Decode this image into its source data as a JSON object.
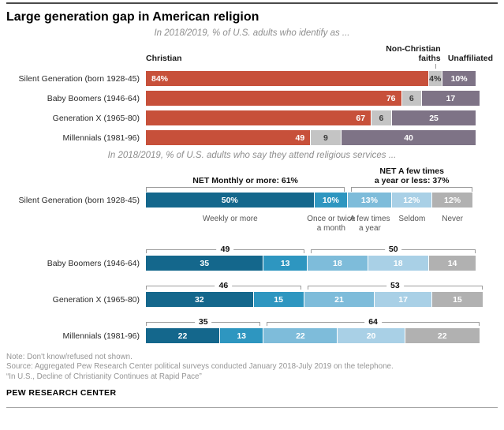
{
  "page": {
    "title": "Large generation gap in American religion"
  },
  "chart_data": [
    {
      "type": "bar",
      "stacked": true,
      "orientation": "horizontal",
      "title": "In 2018/2019, % of U.S. adults who identify as ...",
      "unit": "%",
      "xlim": [
        0,
        100
      ],
      "grid": false,
      "legend_position": "top",
      "column_headers": {
        "christian": "Christian",
        "non_christian": "Non-Christian\nfaiths",
        "unaffiliated": "Unaffiliated"
      },
      "categories": [
        "Silent Generation (born 1928-45)",
        "Baby Boomers (1946-64)",
        "Generation X (1965-80)",
        "Millennials (1981-96)"
      ],
      "series": [
        {
          "name": "Christian",
          "color": "#c7503a",
          "values": [
            84,
            76,
            67,
            49
          ],
          "value_labels": [
            "84%",
            "76",
            "67",
            "49"
          ]
        },
        {
          "name": "Non-Christian faiths",
          "color": "#c4c4c4",
          "values": [
            4,
            6,
            6,
            9
          ],
          "value_labels": [
            "4%",
            "6",
            "6",
            "9"
          ]
        },
        {
          "name": "Unaffiliated",
          "color": "#7e7386",
          "values": [
            10,
            17,
            25,
            40
          ],
          "value_labels": [
            "10%",
            "17",
            "25",
            "40"
          ]
        }
      ]
    },
    {
      "type": "bar",
      "stacked": true,
      "orientation": "horizontal",
      "title": "In 2018/2019, % of U.S. adults who say they attend religious services ...",
      "unit": "%",
      "xlim": [
        0,
        100
      ],
      "grid": false,
      "categories": [
        "Silent Generation (born 1928-45)",
        "Baby Boomers (1946-64)",
        "Generation X (1965-80)",
        "Millennials (1981-96)"
      ],
      "series": [
        {
          "name": "Weekly or more",
          "color": "#14678c",
          "values": [
            50,
            35,
            32,
            22
          ],
          "value_labels": [
            "50%",
            "35",
            "32",
            "22"
          ]
        },
        {
          "name": "Once or twice a month",
          "color": "#2e96c0",
          "values": [
            10,
            13,
            15,
            13
          ],
          "value_labels": [
            "10%",
            "13",
            "15",
            "13"
          ]
        },
        {
          "name": "A few times a year",
          "color": "#7ebcda",
          "values": [
            13,
            18,
            21,
            22
          ],
          "value_labels": [
            "13%",
            "18",
            "21",
            "22"
          ]
        },
        {
          "name": "Seldom",
          "color": "#a9d0e6",
          "values": [
            12,
            18,
            17,
            20
          ],
          "value_labels": [
            "12%",
            "18",
            "17",
            "20"
          ]
        },
        {
          "name": "Never",
          "color": "#b1b1b1",
          "values": [
            12,
            14,
            15,
            22
          ],
          "value_labels": [
            "12%",
            "14",
            "15",
            "22"
          ]
        }
      ],
      "segment_axis_labels": [
        "Weekly or more",
        "Once or twice\na month",
        "A few times\na year",
        "Seldom",
        "Never"
      ],
      "net_headers": {
        "left": "NET Monthly or more: 61%",
        "right": "NET A few times\na year or less: 37%"
      },
      "net_values": [
        {
          "left": "49",
          "right": "50"
        },
        {
          "left": "46",
          "right": "53"
        },
        {
          "left": "35",
          "right": "64"
        }
      ]
    }
  ],
  "footer": {
    "note": "Note: Don't know/refused not shown.",
    "source": "Source: Aggregated Pew Research Center political surveys conducted January 2018-July 2019 on the telephone.",
    "report": "“In U.S., Decline of Christianity Continues at Rapid Pace”",
    "brand": "PEW RESEARCH CENTER"
  }
}
